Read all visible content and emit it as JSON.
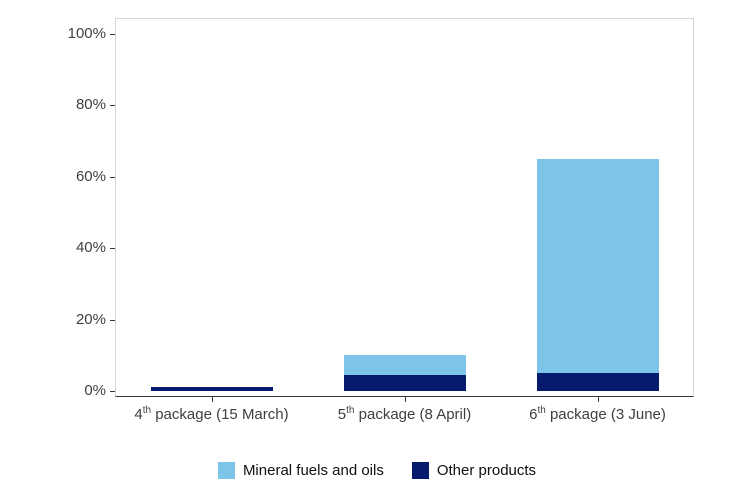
{
  "chart_data": {
    "type": "bar",
    "stacked": true,
    "title": "",
    "xlabel": "",
    "ylabel": "",
    "ylim": [
      0,
      100
    ],
    "grid": false,
    "legend_position": "bottom",
    "categories": [
      {
        "label": "4th package (15 March)",
        "num": "4",
        "sup": "th",
        "rest": " package (15 March)"
      },
      {
        "label": "5th package (8 April)",
        "num": "5",
        "sup": "th",
        "rest": " package (8 April)"
      },
      {
        "label": "6th package (3 June)",
        "num": "6",
        "sup": "th",
        "rest": " package (3 June)"
      }
    ],
    "series": [
      {
        "name": "Mineral fuels and oils",
        "color": "#7CC5E8",
        "values": [
          0,
          5.5,
          60
        ]
      },
      {
        "name": "Other products",
        "color": "#051C6E",
        "values": [
          1,
          4.5,
          5
        ]
      }
    ],
    "yticks": [
      0,
      20,
      40,
      60,
      80,
      100
    ],
    "ytick_labels": [
      "0%",
      "20%",
      "40%",
      "60%",
      "80%",
      "100%"
    ]
  },
  "legend": {
    "items": [
      {
        "label": "Mineral fuels and oils",
        "color": "#7CC5E8"
      },
      {
        "label": "Other products",
        "color": "#051C6E"
      }
    ]
  }
}
